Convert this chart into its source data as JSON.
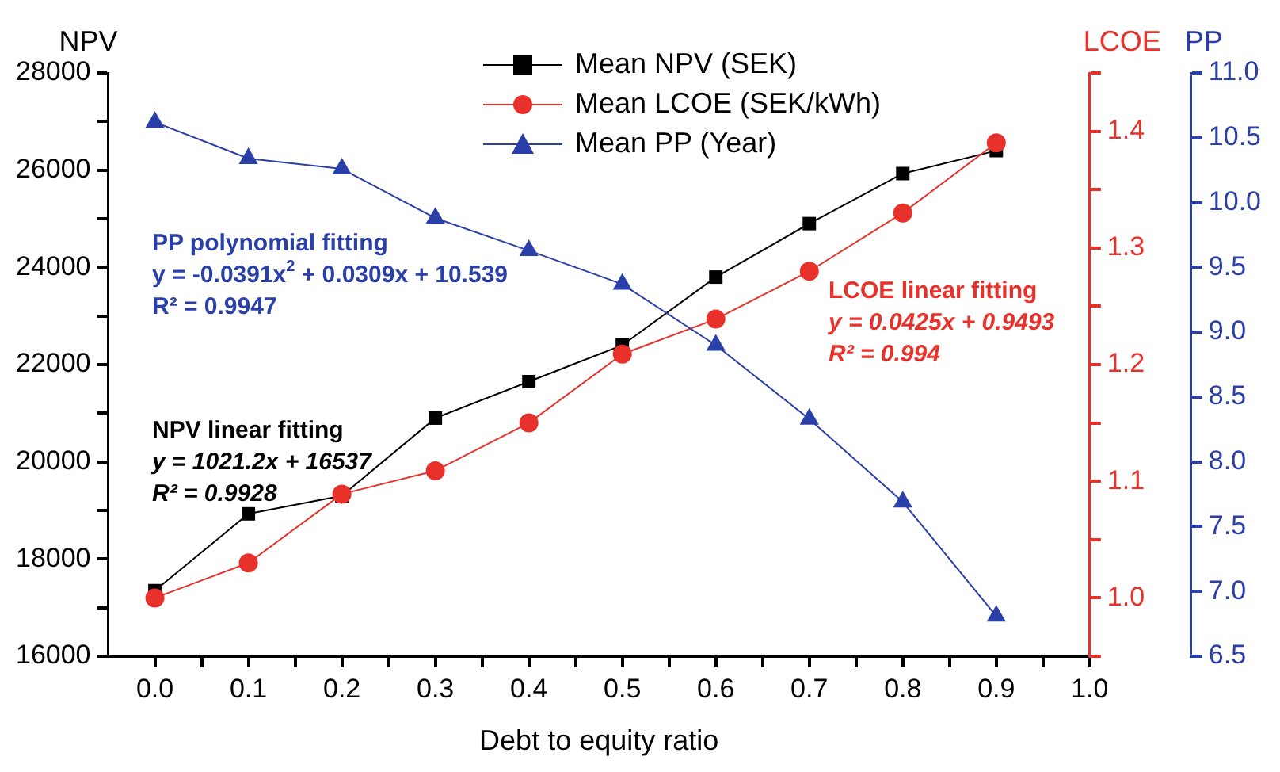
{
  "chart_data": {
    "type": "line",
    "x": [
      0,
      0.1,
      0.2,
      0.3,
      0.4,
      0.5,
      0.6,
      0.7,
      0.8,
      0.9
    ],
    "series": [
      {
        "name": "Mean NPV (SEK)",
        "color": "#000000",
        "marker": "square",
        "values": [
          17350,
          18930,
          19300,
          20900,
          21650,
          22400,
          23800,
          24900,
          25930,
          26400
        ]
      },
      {
        "name": "Mean LCOE (SEK/kWh)",
        "color": "#e8312a",
        "marker": "circle",
        "axis": "y2",
        "values": [
          1.0,
          1.03,
          1.089,
          1.109,
          1.15,
          1.209,
          1.239,
          1.28,
          1.33,
          1.39
        ]
      },
      {
        "name": "Mean PP (Year)",
        "color": "#2b3fa8",
        "marker": "triangle",
        "axis": "y3",
        "values": [
          10.62,
          10.34,
          10.26,
          9.88,
          9.63,
          9.37,
          8.9,
          8.33,
          7.69,
          6.81
        ]
      }
    ],
    "xlabel": "Debt to equity ratio",
    "ylabel": "NPV",
    "y2label": "LCOE",
    "y3label": "PP",
    "xlim": [
      -0.05,
      1.0
    ],
    "xticks": [
      {
        "value": 0,
        "label": "0.0"
      },
      {
        "value": 0.05,
        "label": null
      },
      {
        "value": 0.1,
        "label": "0.1"
      },
      {
        "value": 0.15,
        "label": null
      },
      {
        "value": 0.2,
        "label": "0.2"
      },
      {
        "value": 0.25,
        "label": null
      },
      {
        "value": 0.3,
        "label": "0.3"
      },
      {
        "value": 0.35,
        "label": null
      },
      {
        "value": 0.4,
        "label": "0.4"
      },
      {
        "value": 0.45,
        "label": null
      },
      {
        "value": 0.5,
        "label": "0.5"
      },
      {
        "value": 0.55,
        "label": null
      },
      {
        "value": 0.6,
        "label": "0.6"
      },
      {
        "value": 0.65,
        "label": null
      },
      {
        "value": 0.7,
        "label": "0.7"
      },
      {
        "value": 0.75,
        "label": null
      },
      {
        "value": 0.8,
        "label": "0.8"
      },
      {
        "value": 0.85,
        "label": null
      },
      {
        "value": 0.9,
        "label": "0.9"
      },
      {
        "value": 0.95,
        "label": null
      },
      {
        "value": 1.0,
        "label": "1.0"
      }
    ],
    "ylim": [
      16000,
      28000
    ],
    "yticks": [
      16000,
      {
        "value": 17000,
        "label": null
      },
      18000,
      {
        "value": 19000,
        "label": null
      },
      20000,
      {
        "value": 21000,
        "label": null
      },
      22000,
      {
        "value": 23000,
        "label": null
      },
      24000,
      {
        "value": 25000,
        "label": null
      },
      26000,
      {
        "value": 27000,
        "label": null
      },
      28000
    ],
    "y2lim": [
      0.95,
      1.45
    ],
    "y2ticks": [
      {
        "value": 0.95,
        "label": null
      },
      {
        "value": 1.0,
        "label": "1.0"
      },
      {
        "value": 1.05,
        "label": null
      },
      1.1,
      {
        "value": 1.15,
        "label": null
      },
      1.2,
      {
        "value": 1.25,
        "label": null
      },
      1.3,
      {
        "value": 1.35,
        "label": null
      },
      1.4,
      {
        "value": 1.45,
        "label": null
      }
    ],
    "y3lim": [
      6.5,
      11.0
    ],
    "y3ticks": [
      6.5,
      {
        "value": 7.0,
        "label": "7.0"
      },
      7.5,
      {
        "value": 8.0,
        "label": "8.0"
      },
      8.5,
      {
        "value": 9.0,
        "label": "9.0"
      },
      9.5,
      {
        "value": 10.0,
        "label": "10.0"
      },
      10.5,
      {
        "value": 11.0,
        "label": "11.0"
      }
    ],
    "annotations": [
      "PP polynomial fitting",
      "y = -0.0391x$^{2}$ + 0.0309x + 10.539",
      "R² = 0.9947",
      "LCOE linear fitting",
      "y = 0.0425x + 0.9493",
      "R² = 0.994",
      "NPV linear fitting",
      "y = 1021.2x + 16537",
      "R² = 0.9928"
    ],
    "legend": "top",
    "grid": false,
    "line_style": "solid"
  }
}
